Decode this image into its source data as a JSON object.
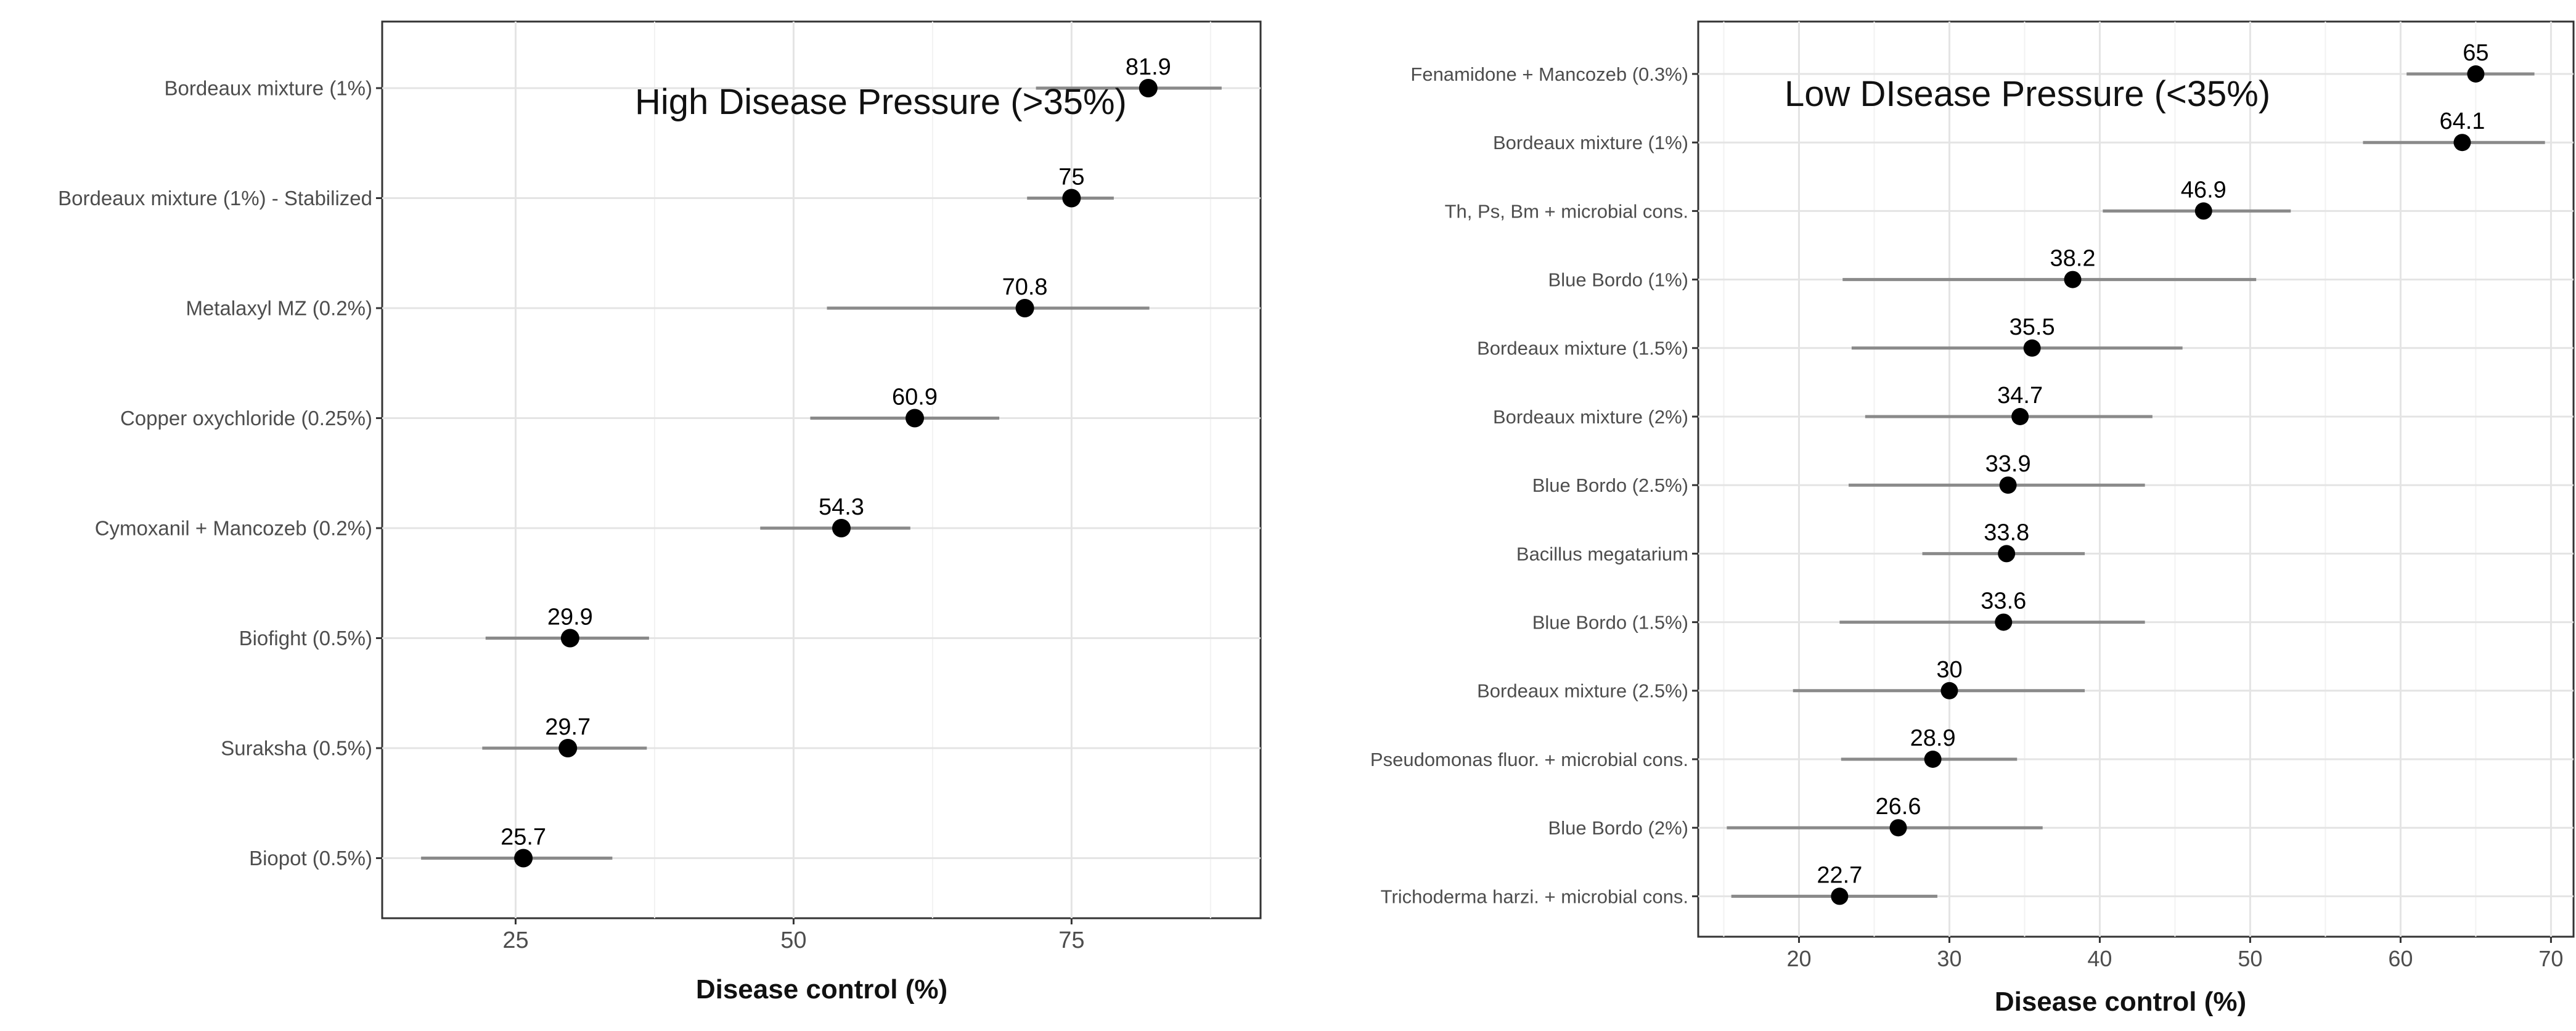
{
  "chart_data": [
    {
      "type": "dot-errorbar",
      "title": "High Disease Pressure (>35%)",
      "xlabel": "Disease control (%)",
      "ylabel": "",
      "xlim": [
        13,
        92
      ],
      "xticks": [
        25,
        50,
        75
      ],
      "grid": true,
      "categories": [
        "Bordeaux mixture (1%)",
        "Bordeaux mixture (1%) - Stabilized",
        "Metalaxyl MZ (0.2%)",
        "Copper oxychloride (0.25%)",
        "Cymoxanil + Mancozeb (0.2%)",
        "Biofight (0.5%)",
        "Suraksha (0.5%)",
        "Biopot (0.5%)"
      ],
      "values": [
        81.9,
        75,
        70.8,
        60.9,
        54.3,
        29.9,
        29.7,
        25.7
      ],
      "value_labels": [
        "81.9",
        "75",
        "70.8",
        "60.9",
        "54.3",
        "29.9",
        "29.7",
        "25.7"
      ],
      "lower": [
        71.8,
        71.0,
        53.0,
        51.5,
        47.0,
        22.3,
        22.0,
        16.5
      ],
      "upper": [
        88.5,
        78.8,
        82.0,
        68.5,
        60.5,
        37.0,
        36.8,
        33.7
      ]
    },
    {
      "type": "dot-errorbar",
      "title": "Low DIsease Pressure (<35%)",
      "xlabel": "Disease control (%)",
      "ylabel": "",
      "xlim": [
        13.3,
        71.5
      ],
      "xticks": [
        20,
        30,
        40,
        50,
        60,
        70
      ],
      "grid": true,
      "categories": [
        "Fenamidone + Mancozeb (0.3%)",
        "Bordeaux mixture (1%)",
        "Th, Ps, Bm + microbial cons.",
        "Blue Bordo (1%)",
        "Bordeaux mixture (1.5%)",
        "Bordeaux mixture (2%)",
        "Blue Bordo (2.5%)",
        "Bacillus megatarium",
        "Blue Bordo (1.5%)",
        "Bordeaux mixture (2.5%)",
        "Pseudomonas fluor. + microbial cons.",
        "Blue Bordo (2%)",
        "Trichoderma harzi. + microbial cons."
      ],
      "values": [
        65,
        64.1,
        46.9,
        38.2,
        35.5,
        34.7,
        33.9,
        33.8,
        33.6,
        30,
        28.9,
        26.6,
        22.7
      ],
      "value_labels": [
        "65",
        "64.1",
        "46.9",
        "38.2",
        "35.5",
        "34.7",
        "33.9",
        "33.8",
        "33.6",
        "30",
        "28.9",
        "26.6",
        "22.7"
      ],
      "lower": [
        60.4,
        57.5,
        40.2,
        22.9,
        23.5,
        24.4,
        23.3,
        28.2,
        22.7,
        19.6,
        22.8,
        15.2,
        15.5
      ],
      "upper": [
        68.9,
        69.6,
        52.7,
        50.4,
        45.5,
        43.5,
        43.0,
        39.0,
        43.0,
        39.0,
        34.5,
        36.2,
        29.2
      ]
    }
  ]
}
